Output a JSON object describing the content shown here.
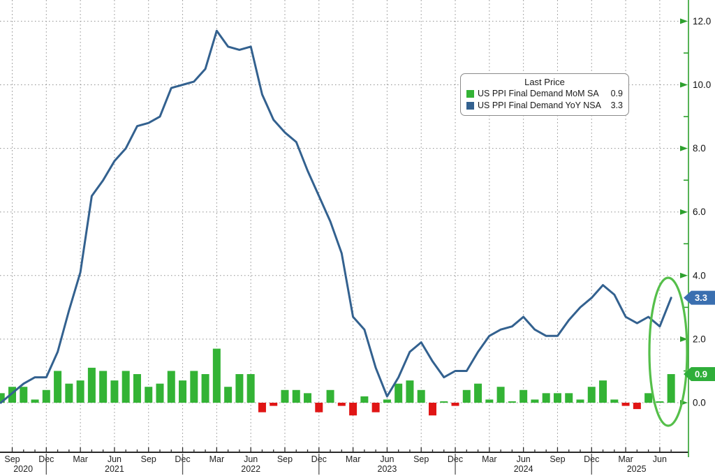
{
  "app": {
    "description": "Financial time-series chart of US Producer Price Index (PPI) Final Demand, monthly bars (MoM SA) with year-over-year line (YoY NSA), Aug 2020 through Jul 2025, latest prints highlighted with a green ellipse"
  },
  "colors": {
    "background": "#ffffff",
    "bar_positive": "#33b335",
    "bar_negative": "#e01515",
    "line_blue": "#33618f",
    "right_axis_green": "#2da02d",
    "grid_gray": "#8f8f8f",
    "bottom_axis_dark": "#2a2a2a",
    "axis_text": "#111111",
    "tag_blue_bg": "#3a6fb0",
    "tag_green_bg": "#2fae3a",
    "tag_text": "#ffffff",
    "ellipse_green": "#55bf4a"
  },
  "chart_data": {
    "type": "bar+line",
    "frequency": "monthly",
    "x_start": "Aug 2020",
    "x_end": "Jul 2025",
    "months": [
      "2020-08",
      "2020-09",
      "2020-10",
      "2020-11",
      "2020-12",
      "2021-01",
      "2021-02",
      "2021-03",
      "2021-04",
      "2021-05",
      "2021-06",
      "2021-07",
      "2021-08",
      "2021-09",
      "2021-10",
      "2021-11",
      "2021-12",
      "2022-01",
      "2022-02",
      "2022-03",
      "2022-04",
      "2022-05",
      "2022-06",
      "2022-07",
      "2022-08",
      "2022-09",
      "2022-10",
      "2022-11",
      "2022-12",
      "2023-01",
      "2023-02",
      "2023-03",
      "2023-04",
      "2023-05",
      "2023-06",
      "2023-07",
      "2023-08",
      "2023-09",
      "2023-10",
      "2023-11",
      "2023-12",
      "2024-01",
      "2024-02",
      "2024-03",
      "2024-04",
      "2024-05",
      "2024-06",
      "2024-07",
      "2024-08",
      "2024-09",
      "2024-10",
      "2024-11",
      "2024-12",
      "2025-01",
      "2025-02",
      "2025-03",
      "2025-04",
      "2025-05",
      "2025-06",
      "2025-07"
    ],
    "series": [
      {
        "name": "US PPI Final Demand MoM SA",
        "type": "bar",
        "last_price": 0.9,
        "color_positive": "#33b335",
        "color_negative": "#e01515",
        "values": [
          0.3,
          0.5,
          0.5,
          0.1,
          0.4,
          1.0,
          0.6,
          0.7,
          1.1,
          1.0,
          0.7,
          1.0,
          0.9,
          0.5,
          0.6,
          1.0,
          0.7,
          1.0,
          0.9,
          1.7,
          0.5,
          0.9,
          0.9,
          -0.3,
          -0.1,
          0.4,
          0.4,
          0.3,
          -0.3,
          0.4,
          -0.1,
          -0.4,
          0.2,
          -0.3,
          0.1,
          0.6,
          0.7,
          0.4,
          -0.4,
          0.0,
          -0.1,
          0.4,
          0.6,
          0.1,
          0.5,
          0.0,
          0.4,
          0.1,
          0.3,
          0.3,
          0.3,
          0.1,
          0.5,
          0.7,
          0.1,
          -0.1,
          -0.2,
          0.3,
          0.0,
          0.9
        ]
      },
      {
        "name": "US PPI Final Demand YoY NSA",
        "type": "line",
        "last_price": 3.3,
        "color": "#33618f",
        "values": [
          0.0,
          0.3,
          0.6,
          0.8,
          0.8,
          1.6,
          2.9,
          4.1,
          6.5,
          7.0,
          7.6,
          8.0,
          8.7,
          8.8,
          9.0,
          9.9,
          10.0,
          10.1,
          10.5,
          11.7,
          11.2,
          11.1,
          11.2,
          9.7,
          8.9,
          8.5,
          8.2,
          7.3,
          6.5,
          5.7,
          4.7,
          2.7,
          2.3,
          1.1,
          0.2,
          0.8,
          1.6,
          1.9,
          1.3,
          0.8,
          1.0,
          1.0,
          1.6,
          2.1,
          2.3,
          2.4,
          2.7,
          2.3,
          2.1,
          2.1,
          2.6,
          3.0,
          3.3,
          3.7,
          3.4,
          2.7,
          2.5,
          2.7,
          2.4,
          3.3
        ]
      }
    ],
    "y_axis": {
      "side": "right",
      "ylim": [
        -1.5,
        12.7
      ],
      "ticks_major": [
        0,
        2,
        4,
        6,
        8,
        10,
        12
      ],
      "tick_labels": [
        "0.0",
        "2.0",
        "4.0",
        "6.0",
        "8.0",
        "10.0",
        "12.0"
      ],
      "ticks_minor": [
        1,
        3,
        5,
        7,
        9,
        11
      ],
      "grid": "dotted"
    },
    "x_axis": {
      "quarter_labels": [
        "Sep",
        "Dec",
        "Mar",
        "Jun",
        "Sep",
        "Dec",
        "Mar",
        "Jun",
        "Sep",
        "Dec",
        "Mar",
        "Jun",
        "Sep",
        "Dec",
        "Mar",
        "Jun",
        "Sep",
        "Dec",
        "Mar",
        "Jun"
      ],
      "year_labels": [
        "2020",
        "2021",
        "2022",
        "2023",
        "2024",
        "2025"
      ],
      "year_divider_quarter_indices": [
        1,
        5,
        9,
        13,
        17
      ],
      "grid": "dotted quarterly"
    },
    "legend": {
      "title": "Last Price",
      "items": [
        {
          "label": "US PPI Final Demand MoM SA",
          "value": "0.9",
          "color": "#33b335"
        },
        {
          "label": "US PPI Final Demand YoY NSA",
          "value": "3.3",
          "color": "#33618f"
        }
      ]
    },
    "price_tags": [
      {
        "value": "3.3",
        "at": 3.3,
        "bg": "#3a6fb0"
      },
      {
        "value": "0.9",
        "at": 0.9,
        "bg": "#2fae3a"
      }
    ],
    "annotations": [
      {
        "type": "ellipse",
        "purpose": "highlight latest MoM bar and YoY uptick",
        "color": "#55bf4a"
      }
    ]
  }
}
